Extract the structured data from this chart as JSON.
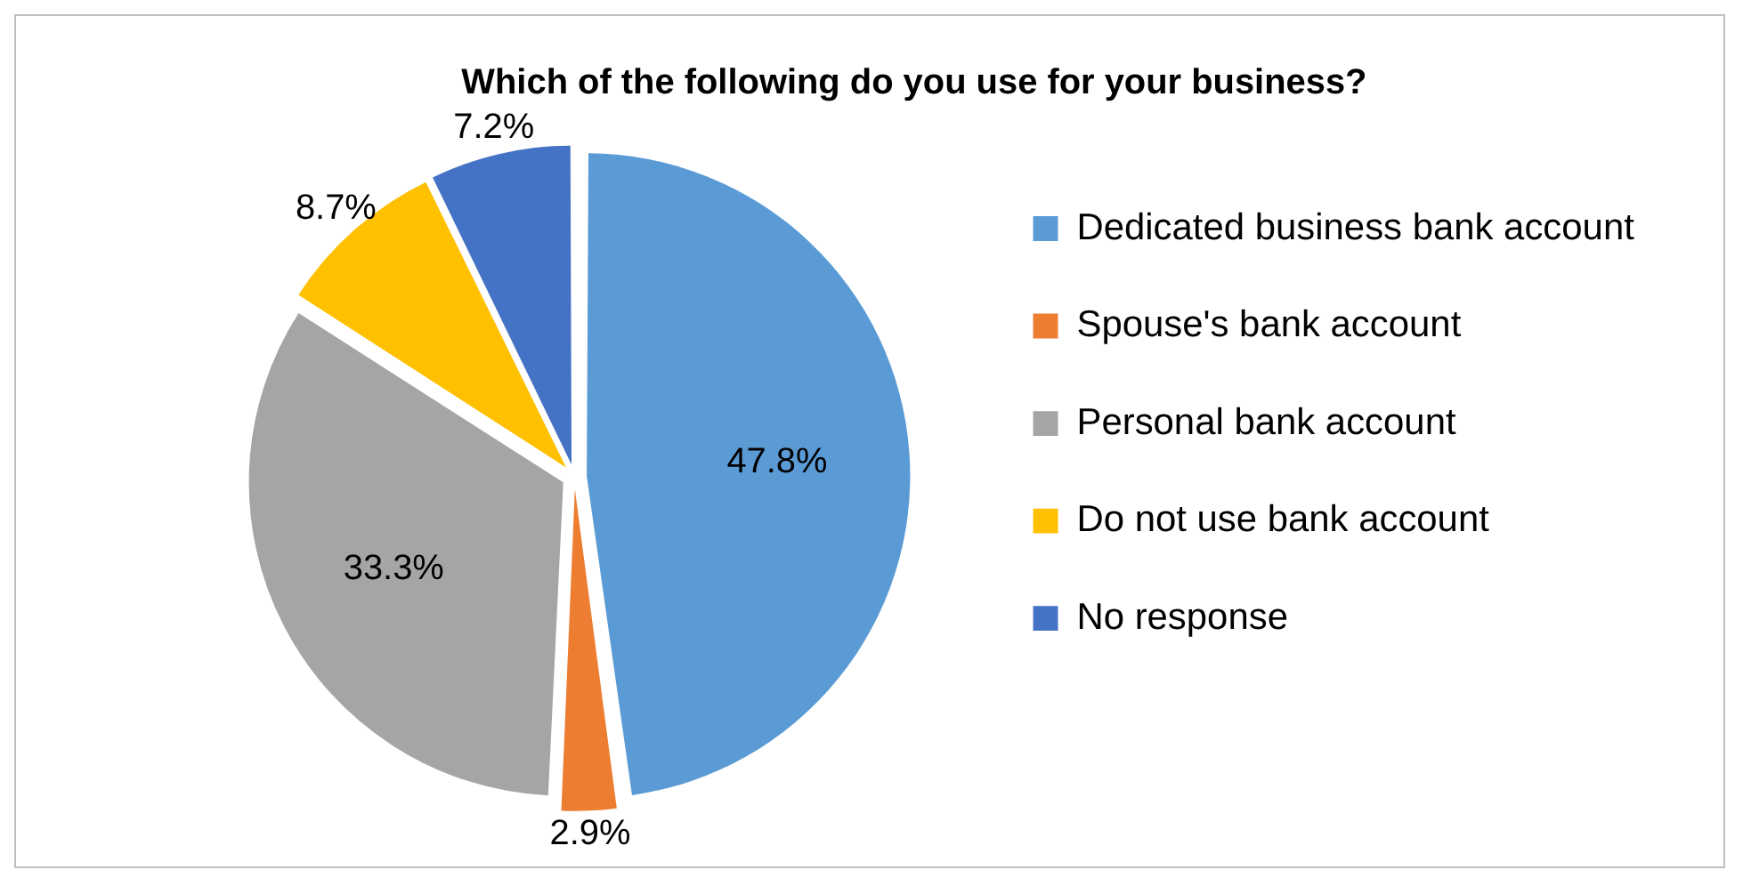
{
  "chart_data": {
    "type": "pie",
    "title": "Which of the following do you use for your business?",
    "categories": [
      "Dedicated business bank account",
      "Spouse's bank account",
      "Personal bank account",
      "Do not use bank account",
      "No response"
    ],
    "values": [
      47.8,
      2.9,
      33.3,
      8.7,
      7.2
    ],
    "colors": [
      "#5b9bd5",
      "#ed7d31",
      "#a5a5a5",
      "#ffc000",
      "#4472c4"
    ],
    "value_labels": [
      "47.8%",
      "2.9%",
      "33.3%",
      "8.7%",
      "7.2%"
    ],
    "legend": "right"
  }
}
